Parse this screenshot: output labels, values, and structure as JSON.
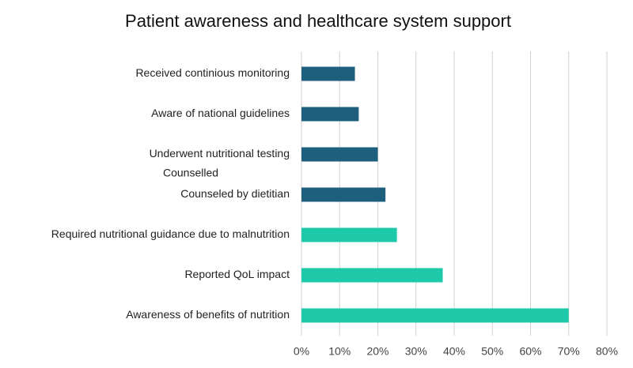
{
  "chart_data": {
    "type": "hbar",
    "title": "Patient awareness and healthcare system support",
    "categories": [
      "Received continious monitoring",
      "Aware of national guidelines",
      "Underwent nutritional testing",
      "Counseled by dietitian",
      "Required nutritional guidance due to malnutrition",
      "Reported QoL impact",
      "Awareness of benefits of nutrition"
    ],
    "values": [
      14,
      15,
      20,
      22,
      25,
      37,
      70
    ],
    "colors": [
      "#1f5f7e",
      "#1f5f7e",
      "#1f5f7e",
      "#1f5f7e",
      "#1dc9a8",
      "#1dc9a8",
      "#1dc9a8"
    ],
    "annotations": [
      "Counselled"
    ],
    "xlim": [
      0,
      80
    ],
    "xticks": [
      {
        "value": 0,
        "label": "0%"
      },
      {
        "value": 10,
        "label": "10%"
      },
      {
        "value": 20,
        "label": "20%"
      },
      {
        "value": 30,
        "label": "30%"
      },
      {
        "value": 40,
        "label": "40%"
      },
      {
        "value": 50,
        "label": "50%"
      },
      {
        "value": 60,
        "label": "60%"
      },
      {
        "value": 70,
        "label": "70%"
      },
      {
        "value": 80,
        "label": "80%"
      }
    ],
    "grid": true
  }
}
